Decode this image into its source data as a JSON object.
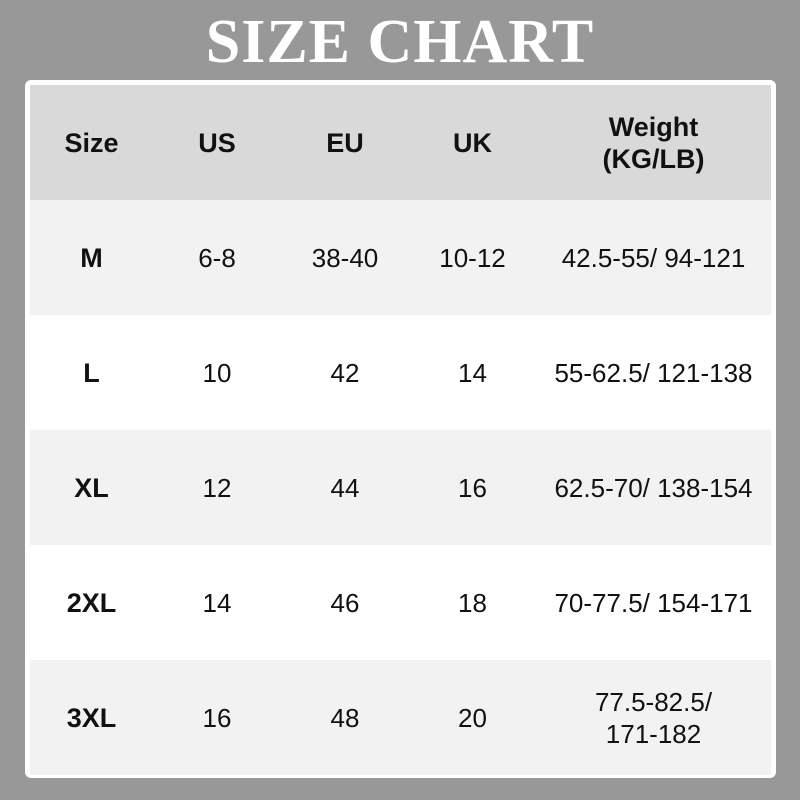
{
  "title": "SIZE CHART",
  "headers": [
    "Size",
    "US",
    "EU",
    "UK",
    "Weight (KG/LB)"
  ],
  "header_weight_lines": [
    "Weight",
    "(KG/LB)"
  ],
  "rows": [
    [
      "M",
      "6-8",
      "38-40",
      "10-12",
      "42.5-55/ 94-121"
    ],
    [
      "L",
      "10",
      "42",
      "14",
      "55-62.5/ 121-138"
    ],
    [
      "XL",
      "12",
      "44",
      "16",
      "62.5-70/ 138-154"
    ],
    [
      "2XL",
      "14",
      "46",
      "18",
      "70-77.5/ 154-171"
    ],
    [
      "3XL",
      "16",
      "48",
      "20",
      "77.5-82.5/ 171-182"
    ]
  ],
  "colors": {
    "background": "#989898",
    "header": "#d9d9d9",
    "row_alt": "#f2f2f2",
    "row": "#ffffff"
  }
}
